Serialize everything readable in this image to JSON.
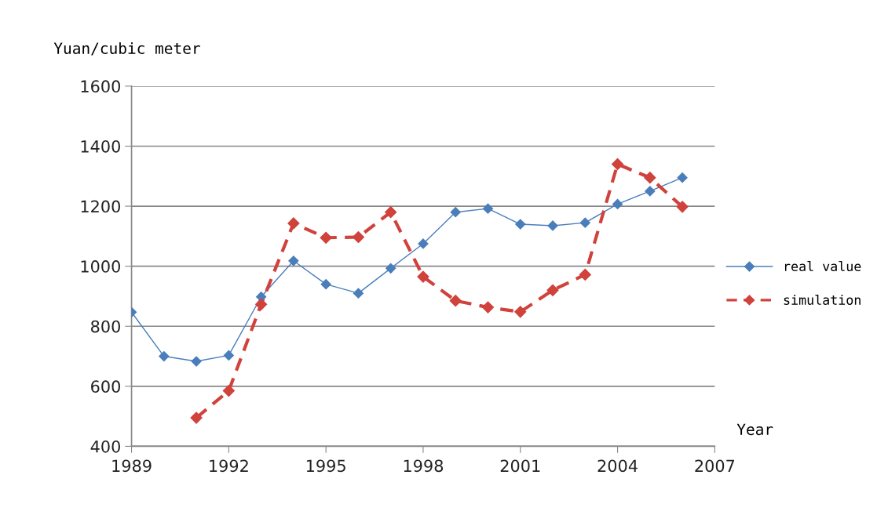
{
  "chart_data": {
    "type": "line",
    "xlabel": "Year",
    "ylabel": "Yuan/cubic meter",
    "xlim": [
      1989,
      2007
    ],
    "xticks": [
      1989,
      1992,
      1995,
      1998,
      2001,
      2004,
      2007
    ],
    "ylim": [
      400,
      1600
    ],
    "yticks": [
      400,
      600,
      800,
      1000,
      1200,
      1400,
      1600
    ],
    "grid": "y",
    "legend": "right",
    "marker": "diamond",
    "series": [
      {
        "name": "real value",
        "color": "#4a7ebb",
        "line_style": "solid",
        "x": [
          1989,
          1990,
          1991,
          1992,
          1993,
          1994,
          1995,
          1996,
          1997,
          1998,
          1999,
          2000,
          2001,
          2002,
          2003,
          2004,
          2005,
          2006
        ],
        "values": [
          847,
          700,
          683,
          703,
          898,
          1018,
          940,
          910,
          993,
          1075,
          1180,
          1192,
          1140,
          1135,
          1145,
          1207,
          1250,
          1295
        ]
      },
      {
        "name": "simulation",
        "color": "#d0423c",
        "line_style": "dashed",
        "x": [
          1991,
          1992,
          1993,
          1994,
          1995,
          1996,
          1997,
          1998,
          1999,
          2000,
          2001,
          2002,
          2003,
          2004,
          2005,
          2006
        ],
        "values": [
          495,
          585,
          873,
          1143,
          1095,
          1097,
          1180,
          965,
          885,
          863,
          848,
          920,
          972,
          1340,
          1295,
          1198
        ]
      }
    ]
  }
}
